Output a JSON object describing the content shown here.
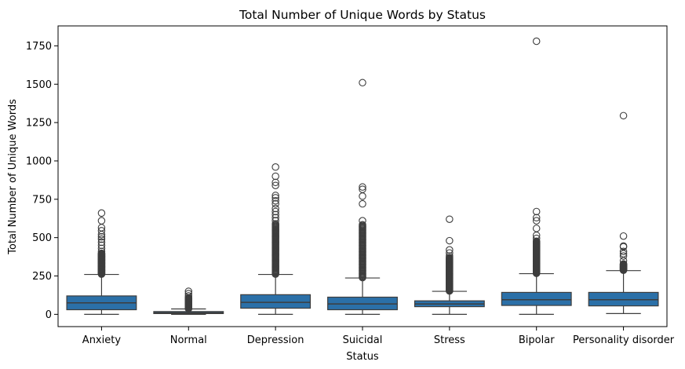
{
  "chart_data": {
    "type": "box",
    "title": "Total Number of Unique Words by Status",
    "xlabel": "Status",
    "ylabel": "Total Number of Unique Words",
    "ylim": [
      -80,
      1880
    ],
    "yticks": [
      0,
      250,
      500,
      750,
      1000,
      1250,
      1500,
      1750
    ],
    "grid": false,
    "box_color": "#2b70a8",
    "line_color": "#3d3d3d",
    "categories": [
      "Anxiety",
      "Normal",
      "Depression",
      "Suicidal",
      "Stress",
      "Bipolar",
      "Personality disorder"
    ],
    "boxes": [
      {
        "q1": 30,
        "median": 75,
        "q3": 120,
        "whisker_low": 0,
        "whisker_high": 260,
        "outlier_range": [
          262,
          400
        ],
        "outliers": [
          410,
          430,
          450,
          470,
          490,
          505,
          520,
          545,
          565,
          610,
          660
        ]
      },
      {
        "q1": 5,
        "median": 10,
        "q3": 18,
        "whisker_low": 0,
        "whisker_high": 35,
        "outlier_range": [
          37,
          110
        ],
        "outliers": [
          120,
          135,
          150
        ]
      },
      {
        "q1": 40,
        "median": 78,
        "q3": 128,
        "whisker_low": 0,
        "whisker_high": 260,
        "outlier_range": [
          262,
          590
        ],
        "outliers": [
          610,
          630,
          650,
          670,
          690,
          720,
          740,
          760,
          775,
          840,
          860,
          900,
          960
        ]
      },
      {
        "q1": 30,
        "median": 68,
        "q3": 112,
        "whisker_low": 0,
        "whisker_high": 237,
        "outlier_range": [
          239,
          590
        ],
        "outliers": [
          610,
          720,
          770,
          815,
          830,
          1510
        ]
      },
      {
        "q1": 50,
        "median": 68,
        "q3": 88,
        "whisker_low": 0,
        "whisker_high": 150,
        "outlier_range": [
          152,
          370
        ],
        "outliers": [
          380,
          400,
          420,
          480,
          620
        ]
      },
      {
        "q1": 58,
        "median": 95,
        "q3": 143,
        "whisker_low": 0,
        "whisker_high": 265,
        "outlier_range": [
          267,
          480
        ],
        "outliers": [
          495,
          515,
          560,
          610,
          630,
          670,
          1780
        ]
      },
      {
        "q1": 55,
        "median": 95,
        "q3": 143,
        "whisker_low": 5,
        "whisker_high": 285,
        "outlier_range": [
          287,
          330
        ],
        "outliers": [
          350,
          380,
          395,
          410,
          440,
          445,
          510,
          1295
        ]
      }
    ]
  }
}
